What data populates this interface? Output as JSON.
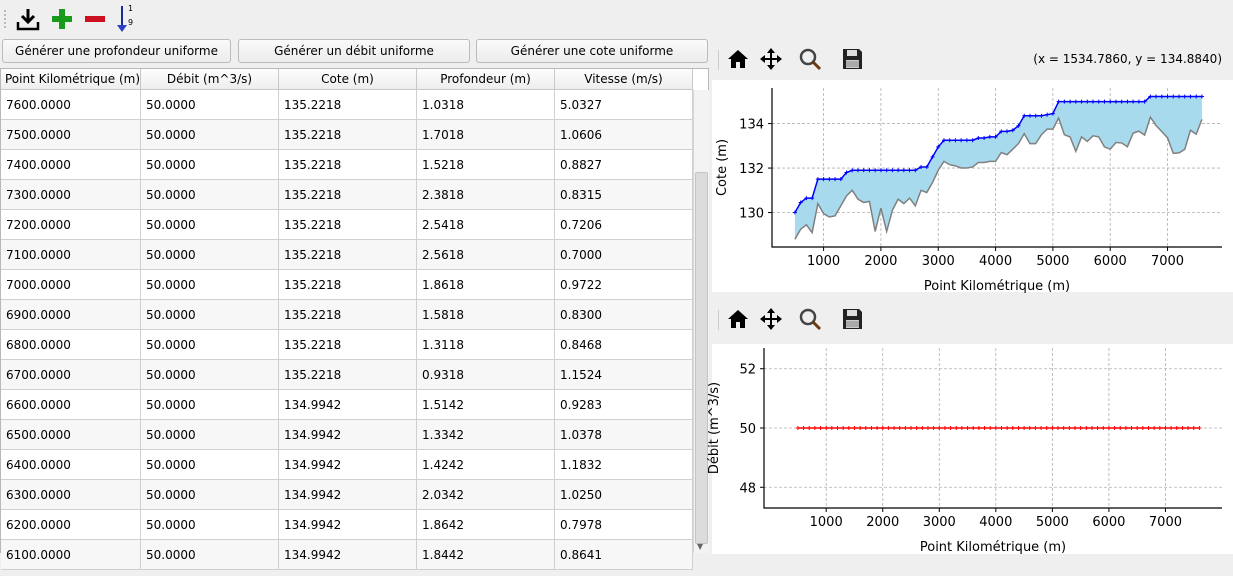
{
  "toolbar": {
    "icons": [
      "download-icon",
      "add-icon",
      "remove-icon",
      "sort-icon"
    ],
    "sort_label_top": "1",
    "sort_label_bottom": "9"
  },
  "buttons": {
    "uniform_depth": "Générer une profondeur uniforme",
    "uniform_flow": "Générer un débit uniforme",
    "uniform_level": "Générer une cote uniforme"
  },
  "table": {
    "columns": [
      "Point Kilométrique (m)",
      "Débit (m^3/s)",
      "Cote (m)",
      "Profondeur (m)",
      "Vitesse (m/s)"
    ],
    "rows": [
      [
        "7600.0000",
        "50.0000",
        "135.2218",
        "1.0318",
        "5.0327"
      ],
      [
        "7500.0000",
        "50.0000",
        "135.2218",
        "1.7018",
        "1.0606"
      ],
      [
        "7400.0000",
        "50.0000",
        "135.2218",
        "1.5218",
        "0.8827"
      ],
      [
        "7300.0000",
        "50.0000",
        "135.2218",
        "2.3818",
        "0.8315"
      ],
      [
        "7200.0000",
        "50.0000",
        "135.2218",
        "2.5418",
        "0.7206"
      ],
      [
        "7100.0000",
        "50.0000",
        "135.2218",
        "2.5618",
        "0.7000"
      ],
      [
        "7000.0000",
        "50.0000",
        "135.2218",
        "1.8618",
        "0.9722"
      ],
      [
        "6900.0000",
        "50.0000",
        "135.2218",
        "1.5818",
        "0.8300"
      ],
      [
        "6800.0000",
        "50.0000",
        "135.2218",
        "1.3118",
        "0.8468"
      ],
      [
        "6700.0000",
        "50.0000",
        "135.2218",
        "0.9318",
        "1.1524"
      ],
      [
        "6600.0000",
        "50.0000",
        "134.9942",
        "1.5142",
        "0.9283"
      ],
      [
        "6500.0000",
        "50.0000",
        "134.9942",
        "1.3342",
        "1.0378"
      ],
      [
        "6400.0000",
        "50.0000",
        "134.9942",
        "1.4242",
        "1.1832"
      ],
      [
        "6300.0000",
        "50.0000",
        "134.9942",
        "2.0342",
        "1.0250"
      ],
      [
        "6200.0000",
        "50.0000",
        "134.9942",
        "1.8642",
        "0.7978"
      ],
      [
        "6100.0000",
        "50.0000",
        "134.9942",
        "1.8442",
        "0.8641"
      ]
    ]
  },
  "plot_toolbar": {
    "icons": [
      "home-icon",
      "pan-icon",
      "zoom-icon",
      "save-icon"
    ],
    "coords": "(x = 1534.7860,   y = 134.8840)"
  },
  "chart_data": [
    {
      "type": "area",
      "xlabel": "Point Kilométrique (m)",
      "ylabel": "Cote (m)",
      "xlim": [
        100,
        7950
      ],
      "ylim": [
        128.45,
        135.6
      ],
      "xticks": [
        1000,
        2000,
        3000,
        4000,
        5000,
        6000,
        7000
      ],
      "yticks": [
        130,
        132,
        134
      ],
      "grid": true,
      "colors": {
        "water": "#0000ff",
        "bed": "#808080",
        "fill": "#a8daee"
      },
      "x": [
        500,
        600,
        700,
        800,
        900,
        1000,
        1100,
        1200,
        1300,
        1400,
        1500,
        1600,
        1700,
        1800,
        1900,
        2000,
        2100,
        2200,
        2300,
        2400,
        2500,
        2600,
        2700,
        2800,
        2900,
        3000,
        3100,
        3200,
        3300,
        3400,
        3500,
        3600,
        3700,
        3800,
        3900,
        4000,
        4100,
        4200,
        4300,
        4400,
        4500,
        4600,
        4700,
        4800,
        4900,
        5000,
        5100,
        5200,
        5300,
        5400,
        5500,
        5600,
        5700,
        5800,
        5900,
        6000,
        6100,
        6200,
        6300,
        6400,
        6500,
        6600,
        6700,
        6800,
        6900,
        7000,
        7100,
        7200,
        7300,
        7400,
        7500,
        7600
      ],
      "water_level": [
        130.0,
        130.45,
        130.65,
        130.65,
        131.5,
        131.5,
        131.5,
        131.5,
        131.5,
        131.8,
        131.9,
        131.9,
        131.9,
        131.9,
        131.9,
        131.9,
        131.9,
        131.9,
        131.9,
        131.9,
        131.9,
        131.9,
        132.05,
        132.05,
        132.5,
        132.95,
        133.25,
        133.25,
        133.25,
        133.25,
        133.25,
        133.25,
        133.35,
        133.35,
        133.4,
        133.4,
        133.65,
        133.65,
        133.7,
        133.9,
        134.35,
        134.35,
        134.35,
        134.35,
        134.4,
        134.45,
        134.99,
        134.99,
        134.99,
        134.99,
        134.99,
        134.99,
        134.99,
        134.99,
        134.99,
        134.99,
        134.99,
        134.99,
        134.99,
        134.99,
        134.99,
        134.99,
        135.22,
        135.22,
        135.22,
        135.22,
        135.22,
        135.22,
        135.22,
        135.22,
        135.22,
        135.22
      ],
      "bed_level": [
        128.8,
        129.25,
        129.45,
        129.1,
        130.4,
        129.95,
        129.8,
        129.85,
        130.3,
        130.75,
        131.0,
        130.6,
        130.45,
        130.5,
        129.15,
        130.2,
        129.15,
        130.1,
        130.6,
        130.4,
        130.65,
        130.3,
        131.0,
        130.9,
        131.35,
        131.9,
        132.3,
        132.15,
        132.1,
        132.0,
        132.0,
        132.05,
        132.25,
        132.25,
        132.3,
        132.3,
        132.7,
        132.6,
        132.85,
        133.1,
        133.55,
        133.1,
        133.1,
        133.5,
        133.75,
        133.75,
        134.25,
        133.5,
        133.4,
        132.75,
        133.4,
        133.2,
        133.45,
        133.4,
        132.95,
        132.85,
        133.15,
        133.13,
        132.96,
        133.57,
        133.66,
        133.48,
        134.29,
        133.91,
        133.64,
        133.36,
        132.66,
        132.68,
        132.84,
        133.7,
        133.52,
        134.19
      ]
    },
    {
      "type": "line",
      "xlabel": "Point Kilométrique (m)",
      "ylabel": "Débit (m^3/s)",
      "xlim": [
        -100,
        8000
      ],
      "ylim": [
        47.3,
        52.7
      ],
      "xticks": [
        1000,
        2000,
        3000,
        4000,
        5000,
        6000,
        7000
      ],
      "yticks": [
        48,
        50,
        52
      ],
      "grid": true,
      "colors": {
        "line": "#ff0000"
      },
      "x_start": 500,
      "x_end": 7600,
      "x_step": 100,
      "value": 50
    }
  ]
}
